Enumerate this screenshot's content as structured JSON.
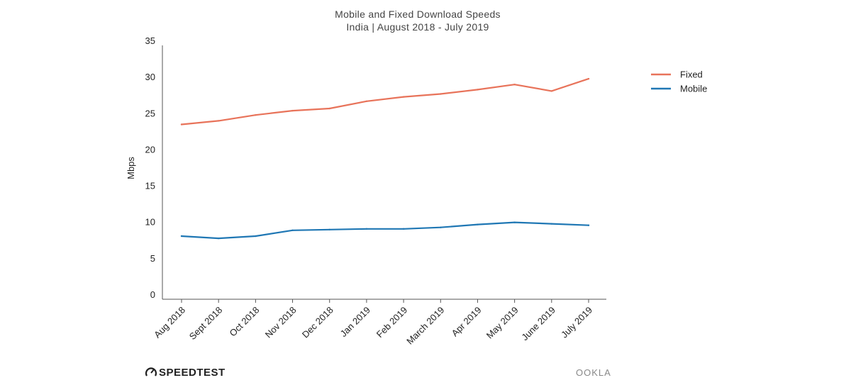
{
  "chart_data": {
    "type": "line",
    "title": "Mobile and Fixed Download Speeds",
    "subtitle": "India | August 2018 - July 2019",
    "xlabel": "",
    "ylabel": "Mbps",
    "ylim": [
      0,
      35
    ],
    "yticks": [
      "0",
      "5",
      "10",
      "15",
      "20",
      "25",
      "30",
      "35"
    ],
    "categories": [
      "Aug 2018",
      "Sept 2018",
      "Oct 2018",
      "Nov 2018",
      "Dec 2018",
      "Jan 2019",
      "Feb 2019",
      "March 2019",
      "Apr 2019",
      "May 2019",
      "June 2019",
      "July 2019"
    ],
    "series": [
      {
        "name": "Fixed",
        "color": "#e8735a",
        "values": [
          24.1,
          24.6,
          25.4,
          26.0,
          26.3,
          27.3,
          27.9,
          28.3,
          28.9,
          29.6,
          28.7,
          30.4
        ]
      },
      {
        "name": "Mobile",
        "color": "#1f77b4",
        "values": [
          8.7,
          8.4,
          8.7,
          9.5,
          9.6,
          9.7,
          9.7,
          9.9,
          10.3,
          10.6,
          10.4,
          10.2
        ]
      }
    ],
    "grid": false,
    "legend": "top-right"
  },
  "branding": {
    "speedtest": "SPEEDTEST",
    "ookla": "OOKLA"
  }
}
